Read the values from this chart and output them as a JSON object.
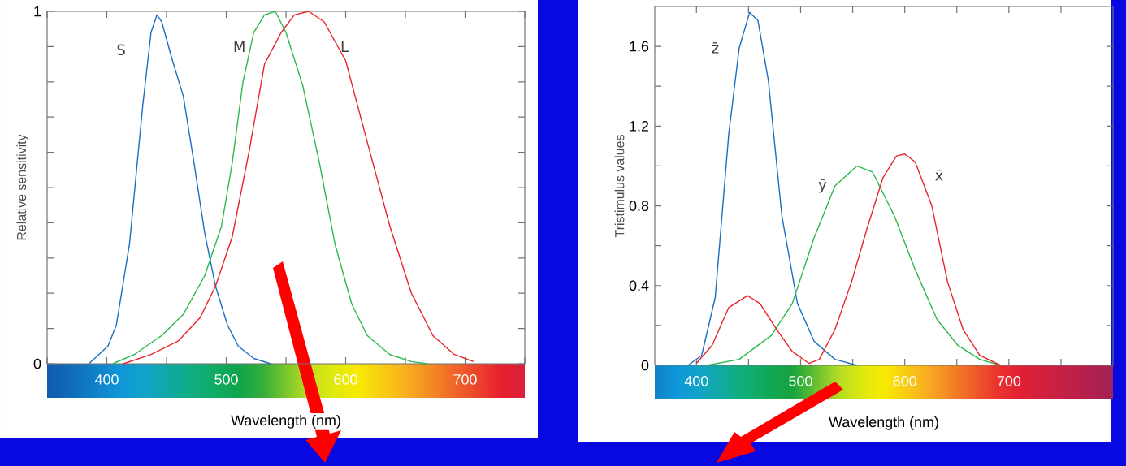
{
  "chart_data": [
    {
      "type": "line",
      "xlabel": "Wavelength (nm)",
      "ylabel": "Relative sensitivity",
      "xlim": [
        350,
        750
      ],
      "ylim": [
        0,
        1
      ],
      "xticks": [
        {
          "value": 350,
          "label": null
        },
        400,
        {
          "value": 450,
          "label": null
        },
        500,
        {
          "value": 550,
          "label": null
        },
        600,
        {
          "value": 650,
          "label": null
        },
        700,
        {
          "value": 750,
          "label": null
        }
      ],
      "yticks": [
        0,
        {
          "value": 0.1,
          "label": null
        },
        {
          "value": 0.2,
          "label": null
        },
        {
          "value": 0.3,
          "label": null
        },
        {
          "value": 0.4,
          "label": null
        },
        {
          "value": 0.5,
          "label": null
        },
        {
          "value": 0.6,
          "label": null
        },
        {
          "value": 0.7,
          "label": null
        },
        {
          "value": 0.8,
          "label": null
        },
        {
          "value": 0.9,
          "label": null
        },
        1
      ],
      "series": [
        {
          "name": "S",
          "color": "#1a6fc0",
          "x": [
            385,
            401,
            408,
            419,
            430,
            437,
            442,
            446,
            455,
            464,
            473,
            482,
            491,
            501,
            510,
            523,
            537
          ],
          "values": [
            0,
            0.05,
            0.11,
            0.34,
            0.73,
            0.94,
            0.99,
            0.97,
            0.86,
            0.76,
            0.57,
            0.37,
            0.22,
            0.11,
            0.05,
            0.015,
            0
          ]
        },
        {
          "name": "M",
          "color": "#2cb84a",
          "x": [
            405,
            423,
            446,
            464,
            482,
            496,
            505,
            514,
            523,
            532,
            541,
            550,
            564,
            578,
            591,
            605,
            618,
            637,
            655,
            668
          ],
          "values": [
            0,
            0.026,
            0.08,
            0.14,
            0.25,
            0.39,
            0.57,
            0.8,
            0.94,
            0.99,
            1.0,
            0.94,
            0.79,
            0.57,
            0.34,
            0.17,
            0.08,
            0.026,
            0.006,
            0
          ]
        },
        {
          "name": "L",
          "color": "#e8232a",
          "x": [
            414,
            437,
            460,
            478,
            491,
            505,
            519,
            532,
            546,
            557,
            569,
            582,
            600,
            618,
            637,
            655,
            673,
            691,
            707
          ],
          "values": [
            0,
            0.026,
            0.065,
            0.13,
            0.22,
            0.36,
            0.6,
            0.85,
            0.94,
            0.99,
            1.0,
            0.97,
            0.86,
            0.63,
            0.39,
            0.2,
            0.08,
            0.026,
            0.006
          ]
        }
      ]
    },
    {
      "type": "line",
      "xlabel": "Wavelength (nm)",
      "ylabel": "Tristimulus values",
      "xlim": [
        360,
        800
      ],
      "ylim": [
        0,
        1.8
      ],
      "xticks": [
        400,
        {
          "value": 450,
          "label": null
        },
        500,
        {
          "value": 550,
          "label": null
        },
        600,
        {
          "value": 650,
          "label": null
        },
        700,
        {
          "value": 750,
          "label": null
        }
      ],
      "yticks": [
        0,
        {
          "value": 0.2,
          "label": null
        },
        0.4,
        {
          "value": 0.6,
          "label": null
        },
        0.8,
        {
          "value": 1.0,
          "label": null
        },
        1.2,
        {
          "value": 1.4,
          "label": null
        },
        1.6
      ],
      "series": [
        {
          "name": "z̄",
          "color": "#1a6fc0",
          "x": [
            392,
            405,
            418,
            431,
            441,
            451,
            459,
            469,
            482,
            497,
            513,
            533,
            554
          ],
          "values": [
            0,
            0.05,
            0.34,
            1.16,
            1.59,
            1.77,
            1.73,
            1.43,
            0.75,
            0.31,
            0.12,
            0.03,
            0
          ]
        },
        {
          "name": "ȳ",
          "color": "#2cb84a",
          "x": [
            410,
            441,
            472,
            492,
            513,
            533,
            554,
            569,
            590,
            610,
            631,
            651,
            672,
            692
          ],
          "values": [
            0,
            0.03,
            0.15,
            0.31,
            0.64,
            0.9,
            1.0,
            0.97,
            0.75,
            0.48,
            0.23,
            0.1,
            0.03,
            0
          ]
        },
        {
          "name": "x̄",
          "color": "#e8232a",
          "x": [
            400,
            415,
            431,
            449,
            461,
            477,
            492,
            508,
            518,
            533,
            549,
            564,
            579,
            592,
            600,
            610,
            626,
            641,
            656,
            672,
            692
          ],
          "values": [
            0.01,
            0.1,
            0.29,
            0.35,
            0.31,
            0.18,
            0.07,
            0.01,
            0.03,
            0.18,
            0.42,
            0.69,
            0.94,
            1.05,
            1.06,
            1.02,
            0.8,
            0.42,
            0.18,
            0.05,
            0
          ]
        }
      ]
    }
  ]
}
